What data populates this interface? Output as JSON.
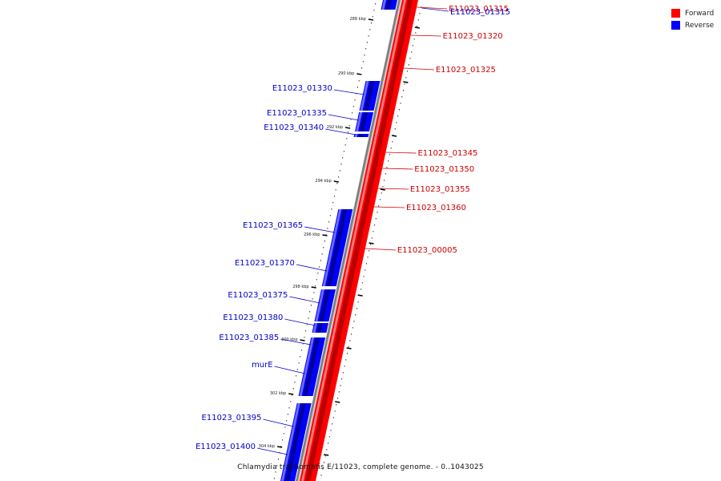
{
  "colors": {
    "forward": "#ff0000",
    "forward_dark": "#b80000",
    "reverse": "#0000ff",
    "reverse_dark": "#00009a",
    "backbone": "#7f7f7f",
    "label_forward": "#cc0000",
    "label_reverse": "#0000cc"
  },
  "legend": {
    "forward_label": "Forward",
    "reverse_label": "Reverse"
  },
  "caption": "Chlamydia trachomatis E/11023, complete genome. - 0..1043025",
  "ticks": [
    {
      "label": "288 kbp",
      "y": 24
    },
    {
      "label": "290 kbp",
      "y": 92
    },
    {
      "label": "292 kbp",
      "y": 159
    },
    {
      "label": "294 kbp",
      "y": 226
    },
    {
      "label": "296 kbp",
      "y": 293
    },
    {
      "label": "298 kbp",
      "y": 358
    },
    {
      "label": "300 kbp",
      "y": 424
    },
    {
      "label": "302 kbp",
      "y": 491
    },
    {
      "label": "304 kbp",
      "y": 557
    }
  ],
  "forward_genes": [
    {
      "name": "E11023_01315",
      "label_y": 14,
      "mark_y": 9
    },
    {
      "name": "E11023_01320",
      "label_y": 48,
      "mark_y": 44
    },
    {
      "name": "E11023_01325",
      "label_y": 90,
      "mark_y": 85
    },
    {
      "name": "E11023_01345",
      "label_y": 194,
      "mark_y": 190
    },
    {
      "name": "E11023_01350",
      "label_y": 214,
      "mark_y": 210
    },
    {
      "name": "E11023_01355",
      "label_y": 239,
      "mark_y": 235
    },
    {
      "name": "E11023_01360",
      "label_y": 262,
      "mark_y": 258
    },
    {
      "name": "E11023_00005",
      "label_y": 315,
      "mark_y": 310
    }
  ],
  "reverse_genes": [
    {
      "name": "E11023_01315",
      "start_y": 0,
      "end_y": 12,
      "label_y": null,
      "mark_y": 7
    },
    {
      "name": "E11023_01330",
      "start_y": 101,
      "end_y": 138,
      "label_y": 110,
      "mark_y": 118
    },
    {
      "name": "E11023_01335",
      "start_y": 140,
      "end_y": 164,
      "label_y": 141,
      "mark_y": 150
    },
    {
      "name": "E11023_01340",
      "start_y": 167,
      "end_y": 171,
      "label_y": 159,
      "mark_y": 168
    },
    {
      "name": "E11023_01365",
      "start_y": 261,
      "end_y": 326,
      "label_y": 281,
      "mark_y": 290
    },
    {
      "name": "E11023_01370",
      "start_y": 326,
      "end_y": 357,
      "label_y": 328,
      "mark_y": 338
    },
    {
      "name": "E11023_01375",
      "start_y": 361,
      "end_y": 401,
      "label_y": 368,
      "mark_y": 378
    },
    {
      "name": "E11023_01380",
      "start_y": 403,
      "end_y": 415,
      "label_y": 396,
      "mark_y": 406
    },
    {
      "name": "E11023_01385",
      "start_y": 421,
      "end_y": 432,
      "label_y": 421,
      "mark_y": 430
    },
    {
      "name": "murE",
      "start_y": 432,
      "end_y": 494,
      "label_y": 455,
      "mark_y": 466
    },
    {
      "name": "E11023_01395",
      "start_y": 503,
      "end_y": 564,
      "label_y": 521,
      "mark_y": 532
    },
    {
      "name": "E11023_01400",
      "start_y": 564,
      "end_y": 600,
      "label_y": 557,
      "mark_y": 567
    }
  ]
}
